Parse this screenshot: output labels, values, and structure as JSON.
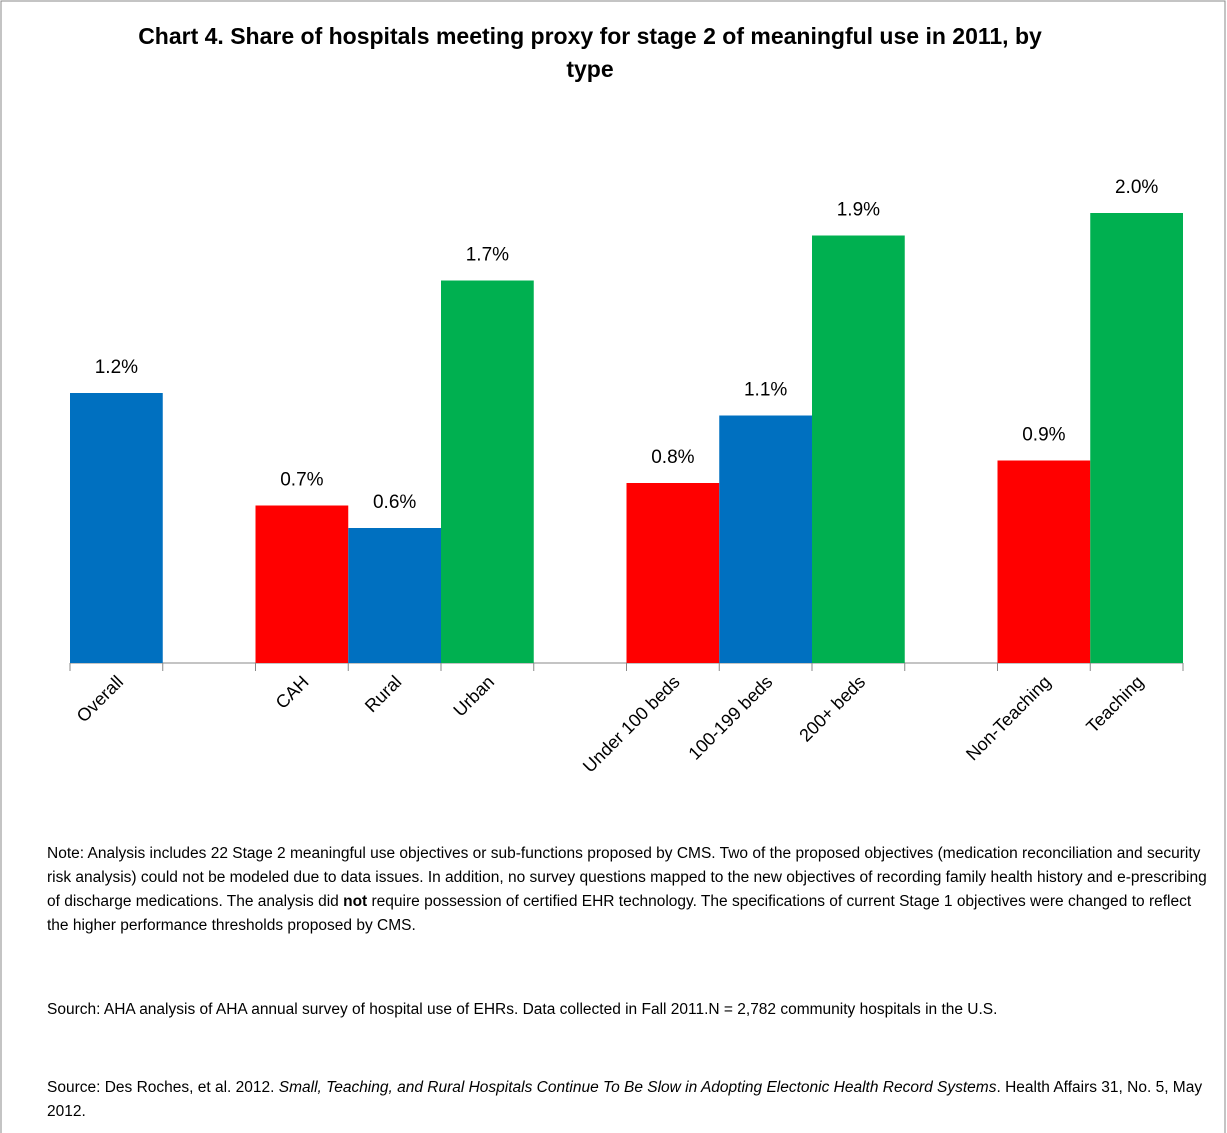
{
  "chart_data": {
    "type": "bar",
    "title": "Chart 4. Share of hospitals meeting proxy for stage 2 of meaningful use in 2011, by type",
    "categories": [
      "Overall",
      null,
      "CAH",
      "Rural",
      "Urban",
      null,
      "Under 100 beds",
      "100-199 beds",
      "200+ beds",
      null,
      "Non-Teaching",
      "Teaching"
    ],
    "values": [
      1.2,
      null,
      0.7,
      0.6,
      1.7,
      null,
      0.8,
      1.1,
      1.9,
      null,
      0.9,
      2.0
    ],
    "value_labels": [
      "1.2%",
      null,
      "0.7%",
      "0.6%",
      "1.7%",
      null,
      "0.8%",
      "1.1%",
      "1.9%",
      null,
      "0.9%",
      "2.0%"
    ],
    "colors": [
      "#0070c0",
      null,
      "#ff0000",
      "#0070c0",
      "#00b050",
      null,
      "#ff0000",
      "#0070c0",
      "#00b050",
      null,
      "#ff0000",
      "#00b050"
    ],
    "ylim": [
      0,
      2.0
    ],
    "grid": false
  },
  "notes": [
    [
      "Note: Analysis includes 22 Stage 2 meaningful use objectives or sub-functions proposed by CMS.  Two of the proposed objectives (medication reconciliation and security risk analysis) could not be modeled due to data issues.  In addition, no survey questions mapped to the new objectives of recording family health history and e-prescribing of discharge medications.  The analysis did ",
      "not",
      " require possession of certified EHR technology.  The specifications of current Stage 1 objectives were changed to reflect the higher performance thresholds proposed by CMS."
    ],
    [
      "Sourch:  AHA analysis of AHA annual survey of hospital use of EHRs.  Data collected in Fall 2011.N = 2,782 community hospitals in the U.S."
    ],
    [
      "Source: Des Roches, et al. 2012.  ",
      "Small, Teaching, and Rural Hospitals Continue To Be Slow in Adopting Electonic Health Record Systems",
      ". Health Affairs  31, No. 5, May 2012."
    ]
  ]
}
